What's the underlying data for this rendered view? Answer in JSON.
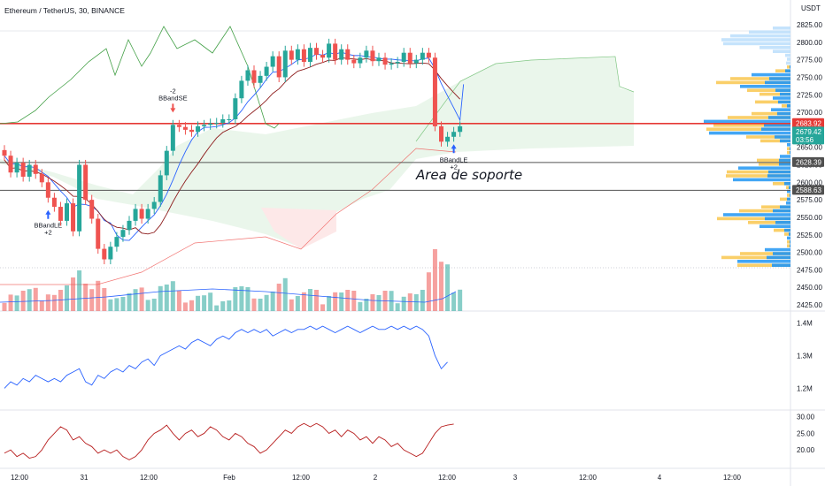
{
  "header": {
    "symbol_title": "Ethereum / TetherUS, 30, BINANCE"
  },
  "annotation": {
    "text": "Area de soporte"
  },
  "currency_label": "USDT",
  "colors": {
    "up": "#26a69a",
    "down": "#ef5350",
    "resistance": "#e53935",
    "support": "#555555",
    "cloud_fill": "#e8f5e9",
    "cloud_red_fill": "#fde8e8",
    "volume_ma": "#2962ff",
    "obv": "#2962ff",
    "rsi": "#b71c1c",
    "vp_yellow": "#f9c74f",
    "vp_blue": "#2196f3",
    "vp_light": "#bbdefb"
  },
  "price_tags": [
    {
      "value": "2683.92",
      "color": "#e53935"
    },
    {
      "value": "2679.42",
      "sub": "03:56",
      "color": "#26a69a"
    },
    {
      "value": "2628.39",
      "color": "#505050"
    },
    {
      "value": "2588.63",
      "color": "#505050"
    }
  ],
  "signals": [
    {
      "label": "BBandSE",
      "count": "-2",
      "type": "short",
      "bar": 27
    },
    {
      "label": "BBandLE",
      "count": "+2",
      "type": "long",
      "bar": 7
    },
    {
      "label": "BBandLE",
      "count": "+2",
      "type": "long",
      "bar": 72
    }
  ],
  "chart_data": [
    {
      "type": "candlestick",
      "title": "Ethereum / TetherUS, 30, BINANCE",
      "ylabel": "USDT",
      "ylim": [
        2415,
        2850
      ],
      "yticks": [
        "2825.00",
        "2800.00",
        "2775.00",
        "2750.00",
        "2725.00",
        "2700.00",
        "2675.00",
        "2650.00",
        "2625.00",
        "2600.00",
        "2575.00",
        "2550.00",
        "2525.00",
        "2500.00",
        "2475.00",
        "2450.00",
        "2425.00"
      ],
      "xticks": [
        "12:00",
        "31",
        "12:00",
        "Feb",
        "12:00",
        "2",
        "12:00",
        "3",
        "12:00",
        "4",
        "12:00"
      ],
      "horizontal_lines": [
        2683.92,
        2628.39,
        2588.63
      ],
      "close": [
        2638,
        2614,
        2628,
        2608,
        2625,
        2612,
        2600,
        2578,
        2565,
        2545,
        2570,
        2530,
        2625,
        2575,
        2548,
        2505,
        2490,
        2508,
        2522,
        2532,
        2545,
        2562,
        2548,
        2562,
        2572,
        2610,
        2645,
        2682,
        2679,
        2675,
        2672,
        2680,
        2682,
        2684,
        2685,
        2690,
        2690,
        2720,
        2745,
        2760,
        2742,
        2752,
        2765,
        2780,
        2750,
        2788,
        2775,
        2790,
        2772,
        2792,
        2782,
        2778,
        2798,
        2775,
        2790,
        2775,
        2770,
        2778,
        2788,
        2773,
        2778,
        2768,
        2770,
        2772,
        2785,
        2770,
        2775,
        2785,
        2778,
        2680,
        2658,
        2665,
        2672,
        2680
      ],
      "volume_max_label": "volume (no scale shown)"
    },
    {
      "type": "line",
      "name": "",
      "ylim": [
        1.15,
        1.42
      ],
      "yticks": [
        "1.4M",
        "1.3M",
        "1.2M"
      ],
      "values": [
        1.2,
        1.22,
        1.21,
        1.23,
        1.22,
        1.24,
        1.23,
        1.22,
        1.23,
        1.22,
        1.24,
        1.25,
        1.26,
        1.22,
        1.21,
        1.24,
        1.23,
        1.25,
        1.26,
        1.25,
        1.27,
        1.26,
        1.28,
        1.29,
        1.27,
        1.3,
        1.31,
        1.32,
        1.33,
        1.32,
        1.34,
        1.35,
        1.34,
        1.33,
        1.35,
        1.36,
        1.35,
        1.37,
        1.38,
        1.37,
        1.38,
        1.37,
        1.38,
        1.36,
        1.37,
        1.38,
        1.37,
        1.38,
        1.38,
        1.39,
        1.38,
        1.39,
        1.38,
        1.37,
        1.38,
        1.39,
        1.38,
        1.37,
        1.38,
        1.39,
        1.38,
        1.38,
        1.39,
        1.38,
        1.39,
        1.38,
        1.39,
        1.38,
        1.36,
        1.3,
        1.26,
        1.28
      ]
    },
    {
      "type": "line",
      "name": "",
      "ylim": [
        15.5,
        31
      ],
      "yticks": [
        "30.00",
        "25.00",
        "20.00"
      ],
      "values": [
        19,
        20,
        18,
        19,
        17.5,
        18,
        20,
        23,
        25,
        27,
        26,
        23,
        24,
        22,
        21,
        19,
        20,
        19,
        20,
        18,
        17,
        18,
        20,
        23,
        25,
        26,
        27.5,
        25,
        23,
        25,
        26,
        24,
        25,
        27,
        26,
        24,
        23,
        25,
        24,
        22,
        21,
        19,
        20,
        22,
        24,
        26,
        25,
        27,
        28,
        27,
        28,
        27,
        25,
        26,
        24,
        26,
        25,
        23,
        24,
        22,
        24,
        23,
        21,
        22,
        20,
        19,
        18,
        19,
        22,
        25,
        27,
        27.5,
        27.8
      ]
    }
  ]
}
